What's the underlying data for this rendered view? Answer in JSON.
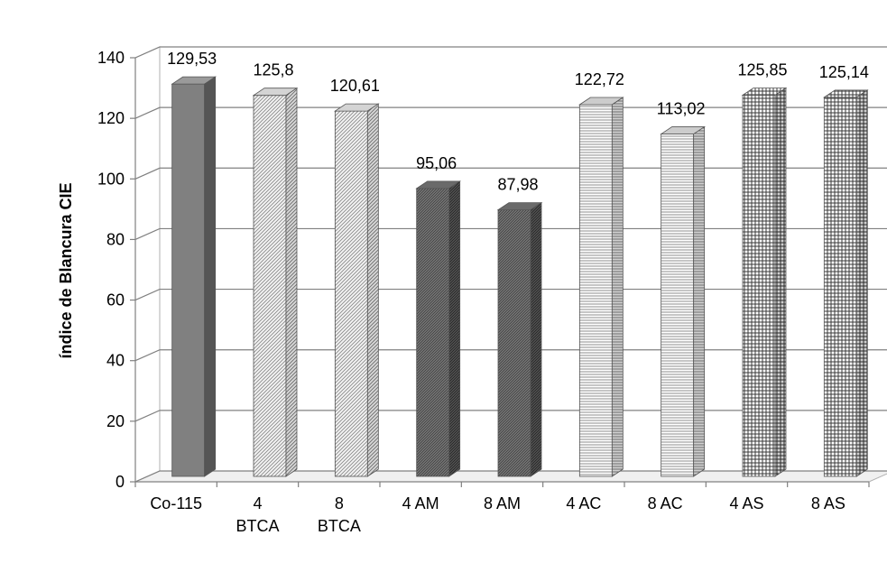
{
  "chart_data": {
    "type": "bar",
    "title": "",
    "xlabel": "",
    "ylabel": "índice de Blancura CIE",
    "ylim": [
      0,
      140
    ],
    "yticks": [
      0,
      20,
      40,
      60,
      80,
      100,
      120,
      140
    ],
    "ytick_labels": [
      "0",
      "20",
      "40",
      "60",
      "80",
      "100",
      "120",
      "140"
    ],
    "grid": true,
    "style": "3d-column",
    "categories": [
      [
        "Co-115"
      ],
      [
        "4",
        "BTCA"
      ],
      [
        "8",
        "BTCA"
      ],
      [
        "4 AM"
      ],
      [
        "8 AM"
      ],
      [
        "4 AC"
      ],
      [
        "8 AC"
      ],
      [
        "4 AS"
      ],
      [
        "8 AS"
      ]
    ],
    "values": [
      129.53,
      125.8,
      120.61,
      95.06,
      87.98,
      122.72,
      113.02,
      125.85,
      125.14
    ],
    "value_labels": [
      "129,53",
      "125,8",
      "120,61",
      "95,06",
      "87,98",
      "122,72",
      "113,02",
      "125,85",
      "125,14"
    ],
    "patterns": [
      "solid-dark",
      "diag-light",
      "diag-light",
      "diag-dark",
      "diag-dark",
      "horiz",
      "horiz",
      "grid",
      "grid"
    ],
    "colors": {
      "solid_front": "#808080",
      "solid_top": "#9a9a9a",
      "solid_side": "#555555",
      "grid_line": "#808080",
      "axis_line": "#808080"
    }
  }
}
